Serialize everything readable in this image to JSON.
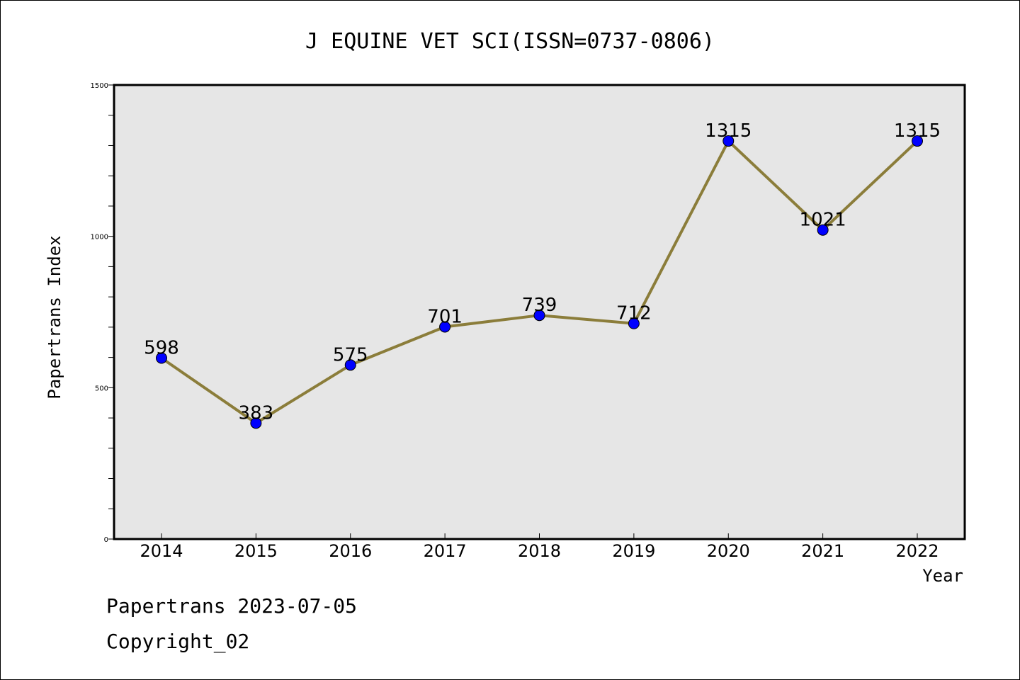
{
  "chart_data": {
    "type": "line",
    "title": "J EQUINE VET SCI(ISSN=0737-0806)",
    "xlabel": "Year",
    "ylabel": "Papertrans Index",
    "categories": [
      "2014",
      "2015",
      "2016",
      "2017",
      "2018",
      "2019",
      "2020",
      "2021",
      "2022"
    ],
    "series": [
      {
        "values": [
          598,
          383,
          575,
          701,
          739,
          712,
          1315,
          1021,
          1315
        ]
      }
    ],
    "data_labels": [
      "598",
      "383",
      "575",
      "701",
      "739",
      "712",
      "1315",
      "1021",
      "1315"
    ],
    "ylim": [
      0,
      1500
    ],
    "y_ticks": [
      0,
      500,
      1000,
      1500
    ],
    "y_tick_labels": [
      "0",
      "500",
      "1000",
      "1500"
    ],
    "y_minor_step": 100,
    "grid": false,
    "colors": {
      "plot_background": "#e6e6e6",
      "line": "#8b7d3a",
      "marker": "#0000ff"
    }
  },
  "footer": {
    "line1": "Papertrans 2023-07-05",
    "line2": "Copyright_02"
  }
}
